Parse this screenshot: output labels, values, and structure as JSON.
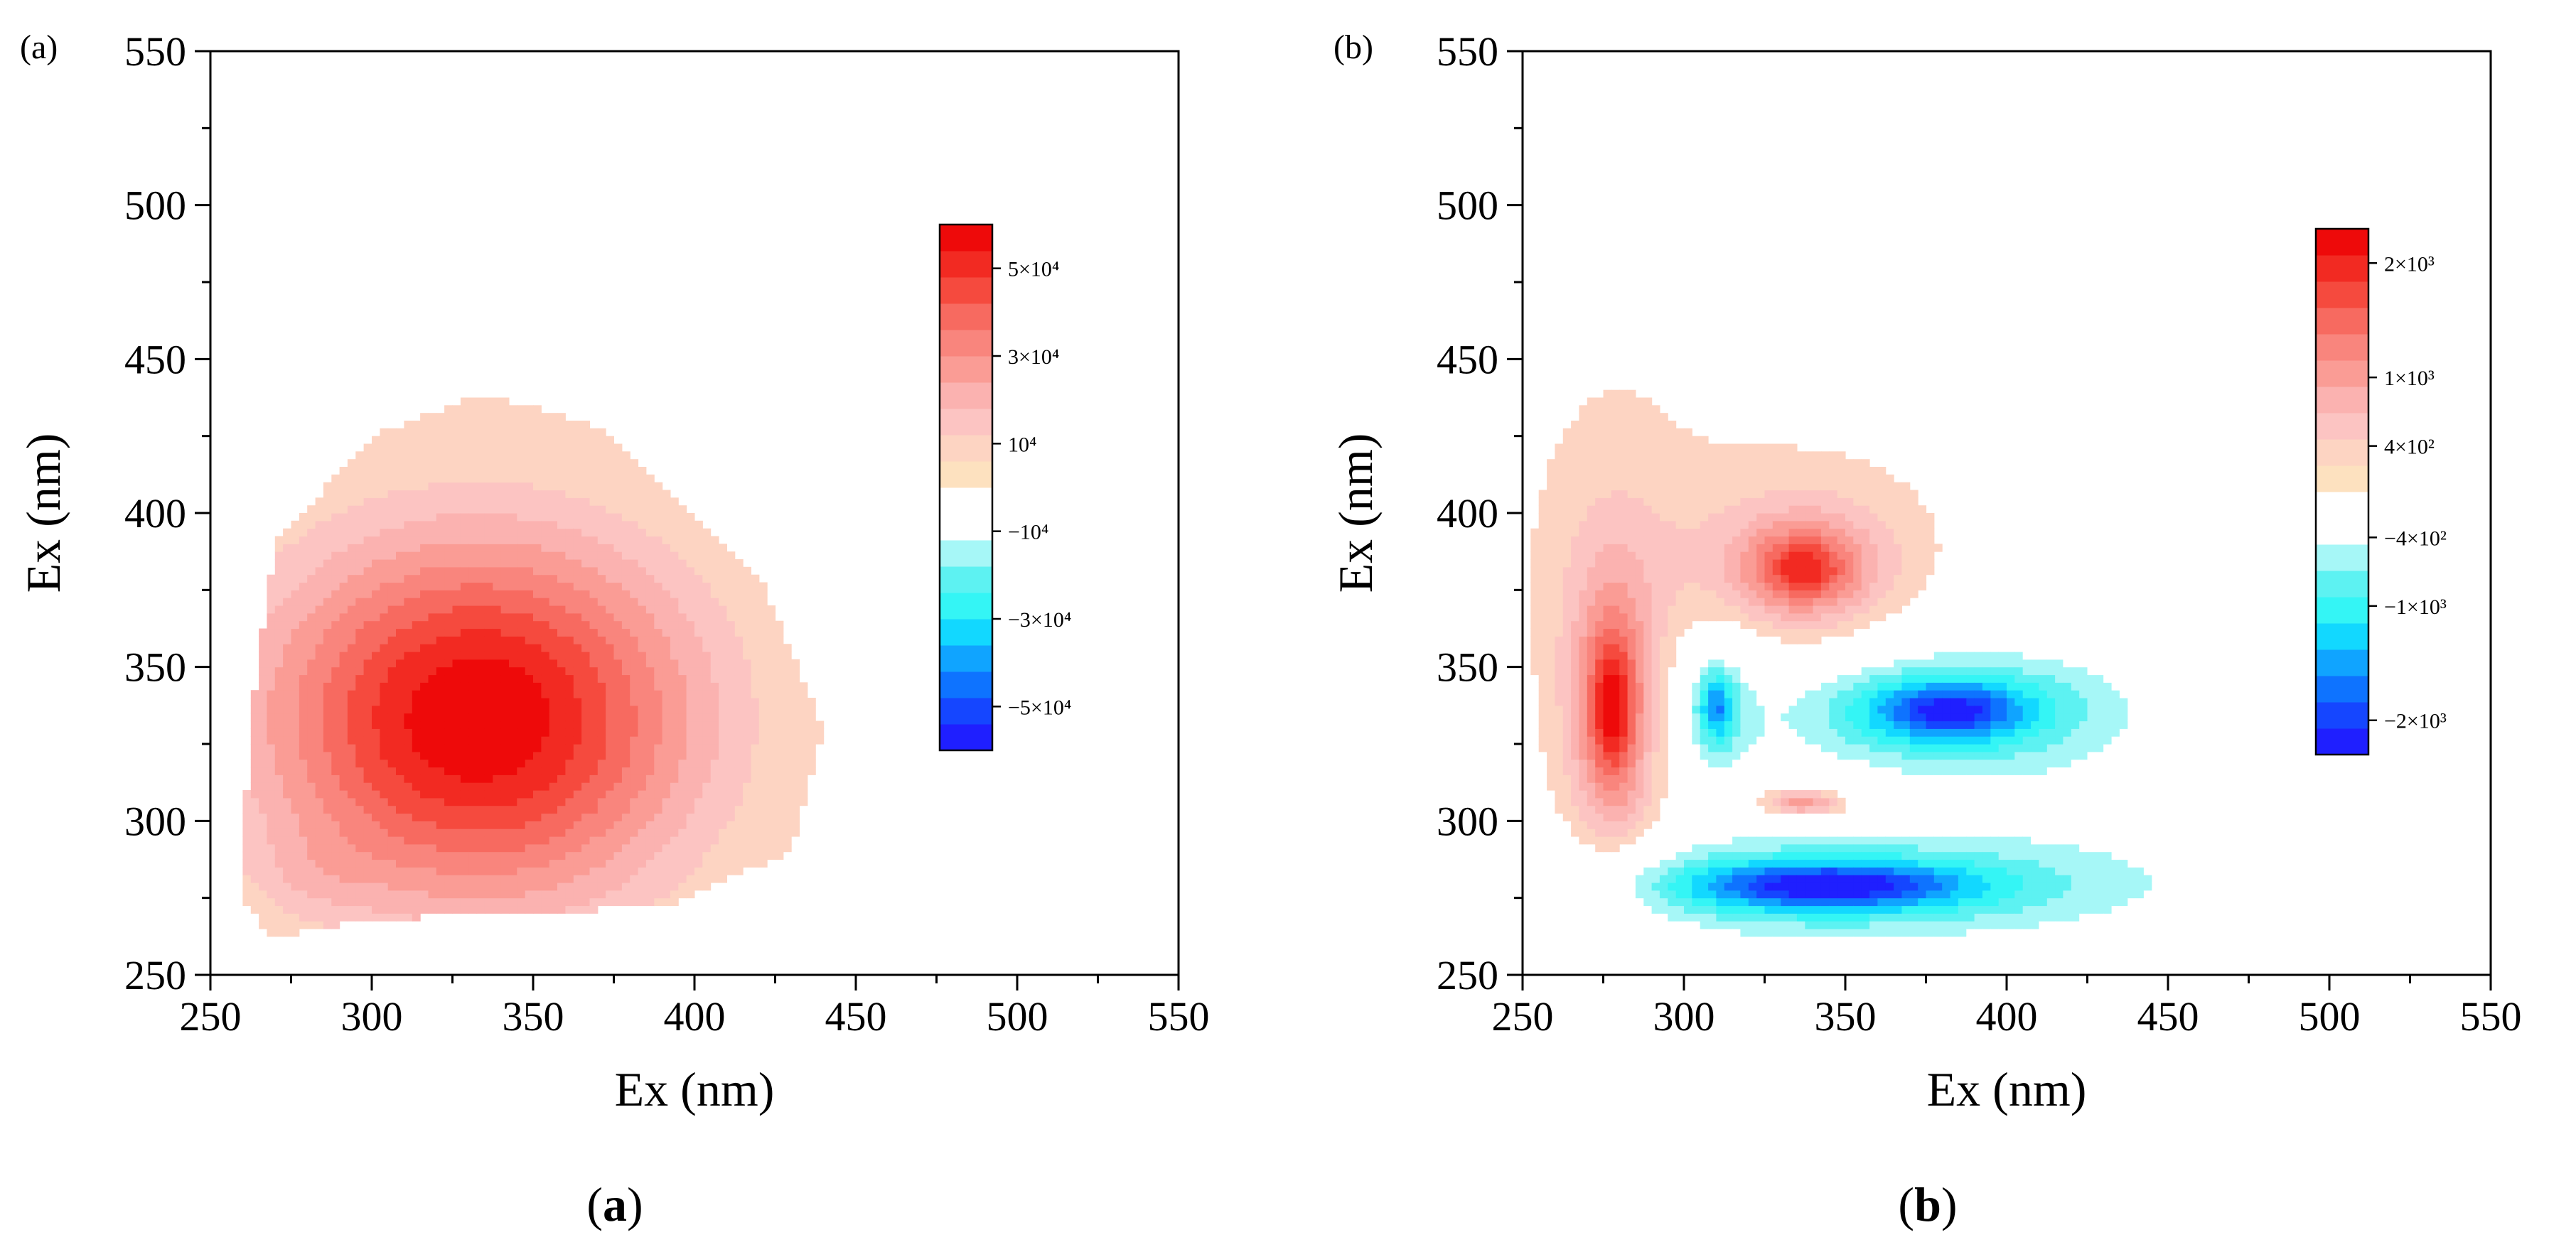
{
  "figure": {
    "caption_a": "(a)",
    "caption_b": "(b)"
  },
  "chart_data": [
    {
      "type": "heatmap",
      "panel_label": "(a)",
      "caption": "(a)",
      "xlabel": "Ex (nm)",
      "ylabel": "Ex (nm)",
      "xlim": [
        250,
        550
      ],
      "ylim": [
        250,
        550
      ],
      "xticks": [
        250,
        300,
        350,
        400,
        450,
        500,
        550
      ],
      "yticks": [
        250,
        300,
        350,
        400,
        450,
        500,
        550
      ],
      "colorbar": {
        "labels": [
          "5×10⁴",
          "3×10⁴",
          "10⁴",
          "−10⁴",
          "−3×10⁴",
          "−5×10⁴"
        ],
        "label_values": [
          50000,
          30000,
          10000,
          -10000,
          -30000,
          -50000
        ],
        "range": [
          -60000,
          60000
        ],
        "colors": [
          "#1f1fff",
          "#1546ff",
          "#0e73ff",
          "#10a4ff",
          "#12d8ff",
          "#34f5f5",
          "#5df2f2",
          "#a6f7f7",
          "#ffffff",
          "#ffffff",
          "#fde1bf",
          "#fdd4c2",
          "#fcc4c2",
          "#fbb2b0",
          "#fa9c95",
          "#f9857d",
          "#f76a60",
          "#f54a3e",
          "#f22a22",
          "#ee0a0a"
        ]
      },
      "peaks": [
        {
          "kind": "gaussian",
          "x": 333,
          "y": 333,
          "sx": 48,
          "sy": 43,
          "amplitude": 60000
        },
        {
          "kind": "gaussian",
          "x": 282,
          "y": 283,
          "sx": 14,
          "sy": 10,
          "amplitude": 5500
        }
      ],
      "boundary": [
        [
          268,
          262
        ],
        [
          300,
          268
        ],
        [
          340,
          270
        ],
        [
          390,
          272
        ],
        [
          430,
          290
        ],
        [
          440,
          330
        ],
        [
          420,
          380
        ],
        [
          370,
          428
        ],
        [
          335,
          439
        ],
        [
          300,
          425
        ],
        [
          270,
          390
        ],
        [
          262,
          330
        ],
        [
          260,
          275
        ]
      ]
    },
    {
      "type": "heatmap",
      "panel_label": "(b)",
      "caption": "(b)",
      "xlabel": "Ex (nm)",
      "ylabel": "Ex (nm)",
      "xlim": [
        250,
        550
      ],
      "ylim": [
        250,
        550
      ],
      "xticks": [
        250,
        300,
        350,
        400,
        450,
        500,
        550
      ],
      "yticks": [
        250,
        300,
        350,
        400,
        450,
        500,
        550
      ],
      "colorbar": {
        "labels": [
          "2×10³",
          "1×10³",
          "4×10²",
          "−4×10²",
          "−1×10³",
          "−2×10³"
        ],
        "label_values": [
          2000,
          1000,
          400,
          -400,
          -1000,
          -2000
        ],
        "range": [
          -2300,
          2300
        ],
        "colors": [
          "#1f1fff",
          "#1546ff",
          "#0e73ff",
          "#10a4ff",
          "#12d8ff",
          "#34f5f5",
          "#5df2f2",
          "#a6f7f7",
          "#ffffff",
          "#ffffff",
          "#fde1bf",
          "#fdd4c2",
          "#fcc4c2",
          "#fbb2b0",
          "#fa9c95",
          "#f9857d",
          "#f76a60",
          "#f54a3e",
          "#f22a22",
          "#ee0a0a"
        ]
      },
      "peaks": [
        {
          "kind": "lorentz",
          "x": 278,
          "y": 337,
          "sx": 9,
          "sy": 30,
          "amplitude": 2500
        },
        {
          "kind": "lorentz",
          "x": 337,
          "y": 382,
          "sx": 18,
          "sy": 14,
          "amplitude": 2200
        },
        {
          "kind": "lorentz",
          "x": 337,
          "y": 306,
          "sx": 12,
          "sy": 4,
          "amplitude": 1400
        },
        {
          "kind": "lorentz",
          "x": 382,
          "y": 336,
          "sx": 28,
          "sy": 11,
          "amplitude": -2400
        },
        {
          "kind": "lorentz",
          "x": 345,
          "y": 279,
          "sx": 45,
          "sy": 8,
          "amplitude": -2500
        },
        {
          "kind": "lorentz",
          "x": 310,
          "y": 337,
          "sx": 6,
          "sy": 12,
          "amplitude": -1700
        }
      ],
      "boundary": []
    }
  ]
}
